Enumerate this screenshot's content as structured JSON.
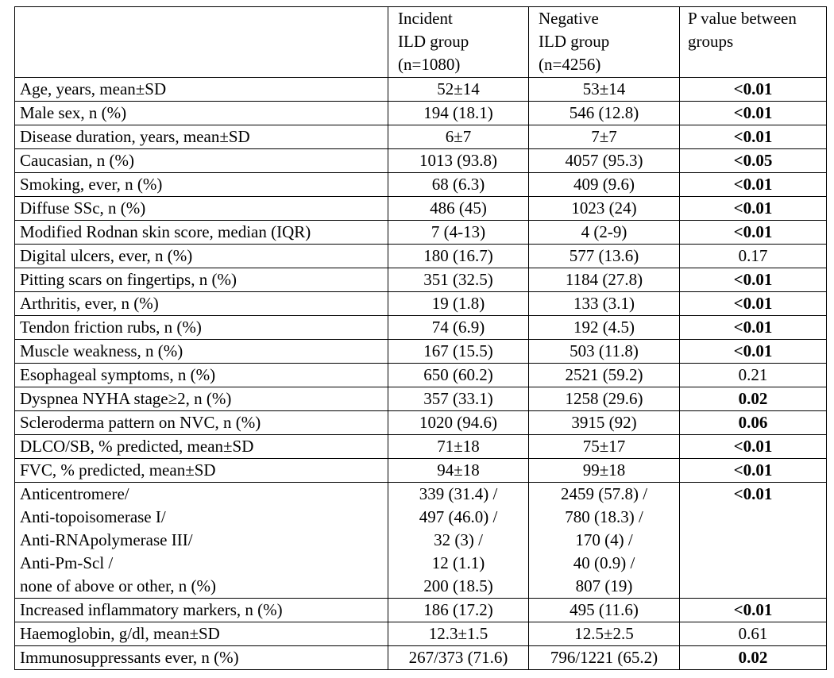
{
  "table": {
    "header": [
      [
        "Incident",
        "ILD group",
        "(n=1080)"
      ],
      [
        "Negative",
        "ILD group",
        "(n=4256)"
      ],
      [
        "P value between",
        "groups"
      ]
    ],
    "rows": [
      {
        "cells": [
          "Age, years, mean±SD",
          "52±14",
          "53±14",
          "<0.01"
        ],
        "bold": true
      },
      {
        "cells": [
          "Male sex, n (%)",
          "194 (18.1)",
          "546 (12.8)",
          "<0.01"
        ],
        "bold": true
      },
      {
        "cells": [
          "Disease duration, years, mean±SD",
          "6±7",
          "7±7",
          "<0.01"
        ],
        "bold": true
      },
      {
        "cells": [
          "Caucasian, n (%)",
          "1013 (93.8)",
          "4057 (95.3)",
          "<0.05"
        ],
        "bold": true
      },
      {
        "cells": [
          "Smoking, ever, n (%)",
          "68 (6.3)",
          "409 (9.6)",
          "<0.01"
        ],
        "bold": true
      },
      {
        "cells": [
          "Diffuse SSc, n (%)",
          "486 (45)",
          "1023 (24)",
          "<0.01"
        ],
        "bold": true
      },
      {
        "cells": [
          "Modified Rodnan skin score, median (IQR)",
          "7 (4-13)",
          "4 (2-9)",
          "<0.01"
        ],
        "bold": true
      },
      {
        "cells": [
          "Digital ulcers, ever, n (%)",
          "180 (16.7)",
          "577 (13.6)",
          "0.17"
        ],
        "bold": false
      },
      {
        "cells": [
          "Pitting scars on fingertips, n (%)",
          "351 (32.5)",
          "1184 (27.8)",
          "<0.01"
        ],
        "bold": true
      },
      {
        "cells": [
          "Arthritis, ever, n (%)",
          "19 (1.8)",
          "133 (3.1)",
          "<0.01"
        ],
        "bold": true
      },
      {
        "cells": [
          "Tendon friction rubs, n (%)",
          "74 (6.9)",
          "192 (4.5)",
          "<0.01"
        ],
        "bold": true
      },
      {
        "cells": [
          "Muscle weakness, n (%)",
          "167 (15.5)",
          "503 (11.8)",
          "<0.01"
        ],
        "bold": true
      },
      {
        "cells": [
          "Esophageal symptoms, n (%)",
          "650 (60.2)",
          "2521 (59.2)",
          "0.21"
        ],
        "bold": false
      },
      {
        "cells": [
          "Dyspnea NYHA stage≥2, n (%)",
          "357 (33.1)",
          "1258 (29.6)",
          "0.02"
        ],
        "bold": true
      },
      {
        "cells": [
          "Scleroderma pattern on NVC, n (%)",
          "1020 (94.6)",
          "3915 (92)",
          "0.06"
        ],
        "bold": true
      },
      {
        "cells": [
          "DLCO/SB, % predicted, mean±SD",
          "71±18",
          "75±17",
          "<0.01"
        ],
        "bold": true
      },
      {
        "cells": [
          "FVC, % predicted, mean±SD",
          "94±18",
          "99±18",
          "<0.01"
        ],
        "bold": true
      },
      {
        "cells": [
          [
            "Anticentromere/",
            "Anti-topoisomerase I/",
            "Anti-RNApolymerase III/",
            "Anti-Pm-Scl /",
            "none of above or other, n (%)"
          ],
          [
            "339 (31.4) /",
            "497 (46.0) /",
            "32 (3) /",
            "12 (1.1)",
            "200 (18.5)"
          ],
          [
            "2459 (57.8) /",
            "780 (18.3) /",
            "170 (4) /",
            "40 (0.9) /",
            "807 (19)"
          ],
          "<0.01"
        ],
        "bold": true
      },
      {
        "cells": [
          "Increased inflammatory markers, n (%)",
          "186 (17.2)",
          "495 (11.6)",
          "<0.01"
        ],
        "bold": true
      },
      {
        "cells": [
          "Haemoglobin, g/dl, mean±SD",
          "12.3±1.5",
          "12.5±2.5",
          "0.61"
        ],
        "bold": false
      },
      {
        "cells": [
          "Immunosuppressants ever, n (%)",
          "267/373 (71.6)",
          "796/1221 (65.2)",
          "0.02"
        ],
        "bold": true
      }
    ]
  }
}
